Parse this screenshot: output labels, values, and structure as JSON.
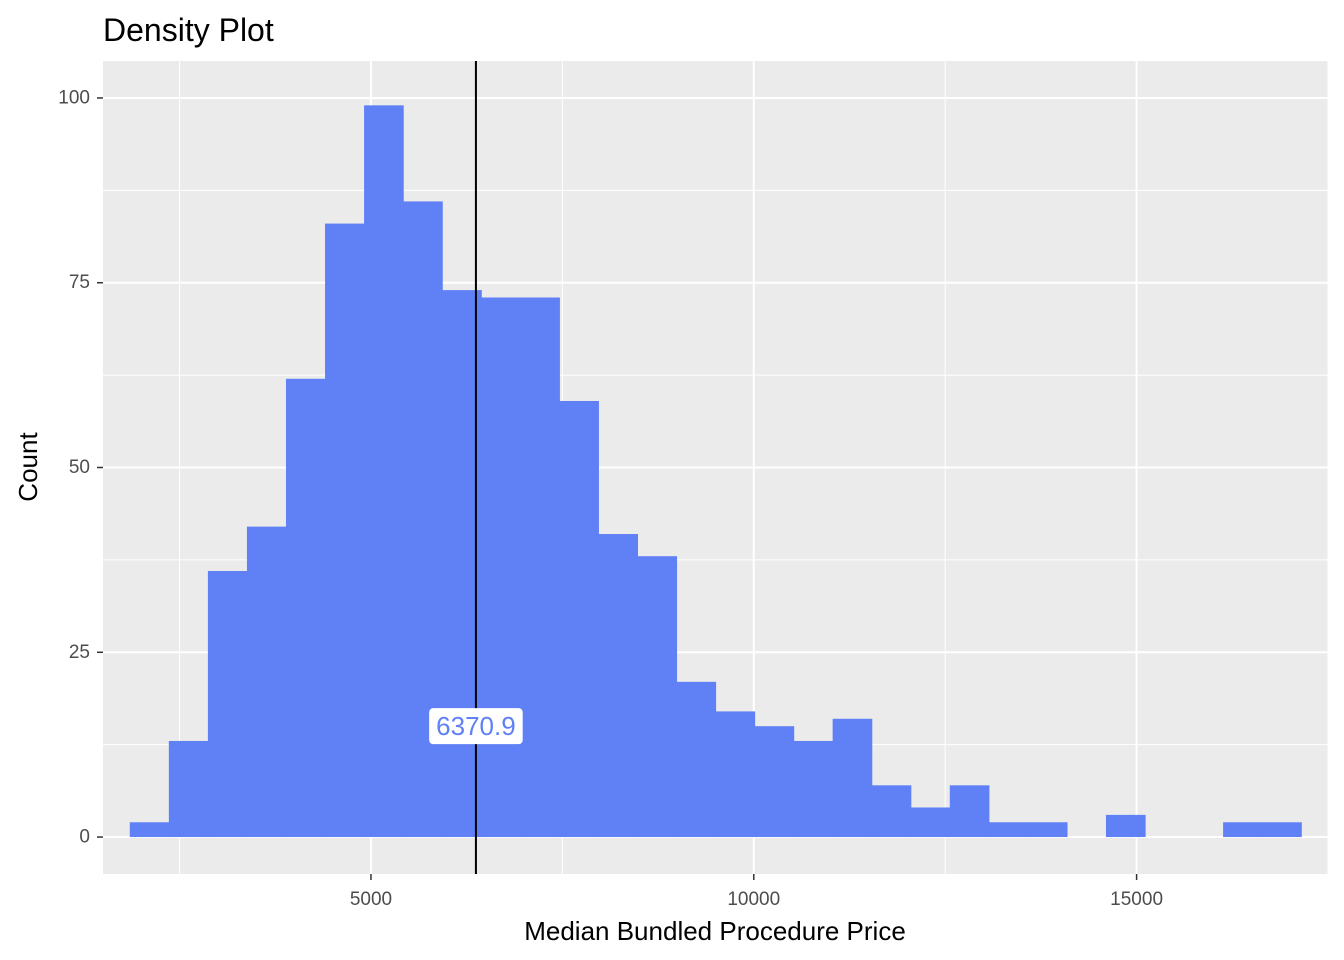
{
  "chart_data": {
    "type": "bar",
    "title": "Density Plot",
    "xlabel": "Median Bundled Procedure Price",
    "ylabel": "Count",
    "xlim": [
      1500,
      17500
    ],
    "ylim": [
      -5,
      105
    ],
    "x_ticks": [
      5000,
      10000,
      15000
    ],
    "x_tick_labels": [
      "5000",
      "10000",
      "15000"
    ],
    "y_ticks": [
      0,
      25,
      50,
      75,
      100
    ],
    "y_tick_labels": [
      "0",
      "25",
      "50",
      "75",
      "100"
    ],
    "bin_width": 510,
    "bin_starts": [
      1850,
      2360,
      2870,
      3380,
      3890,
      4400,
      4910,
      5420,
      5930,
      6440,
      6950,
      7460,
      7970,
      8480,
      8990,
      9500,
      10010,
      10520,
      11030,
      11540,
      12050,
      12560,
      13070,
      13580,
      14090,
      14600,
      15110,
      15620,
      16130,
      16640
    ],
    "values": [
      2,
      13,
      36,
      42,
      62,
      83,
      99,
      86,
      74,
      73,
      73,
      59,
      41,
      38,
      21,
      17,
      15,
      13,
      16,
      7,
      4,
      7,
      2,
      2,
      0,
      3,
      0,
      0,
      2,
      2
    ],
    "bar_color": "#6080f5",
    "panel_background": "#ebebeb",
    "grid": true,
    "median_line_x": 6370.9,
    "median_label": "6370.9",
    "median_label_y": 15,
    "median_line_color": "#000000",
    "median_label_color": "#6080f5"
  }
}
